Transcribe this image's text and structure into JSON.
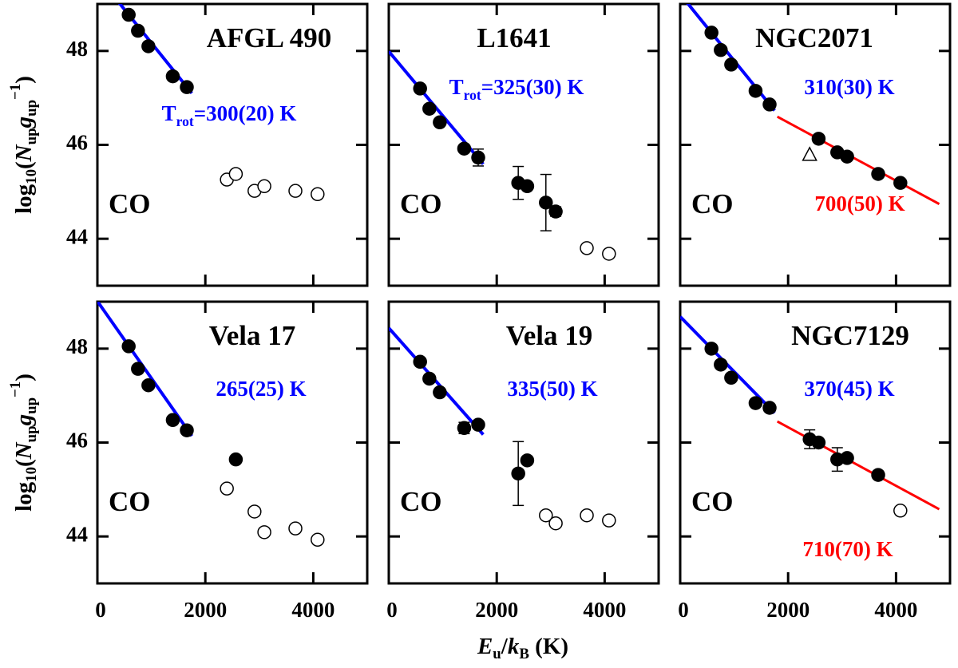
{
  "chart_data": [
    {
      "type": "scatter",
      "title": "AFGL 490",
      "label": "CO",
      "xlim": [
        0,
        5000
      ],
      "ylim": [
        43,
        49
      ],
      "xticks": [
        0,
        2000,
        4000
      ],
      "yticks": [
        44,
        46,
        48
      ],
      "ylabel": [
        "log",
        "10",
        "(",
        "N",
        "up",
        "g",
        "up",
        "−1",
        ")"
      ],
      "filled": {
        "x": [
          580,
          752,
          945,
          1397,
          1657
        ],
        "values": [
          48.77,
          48.43,
          48.1,
          47.46,
          47.23
        ]
      },
      "open": {
        "x": [
          2399,
          2565,
          2911,
          3093,
          3669,
          4080
        ],
        "values": [
          45.26,
          45.38,
          45.02,
          45.12,
          45.02,
          44.95
        ]
      },
      "fits": [
        {
          "x": [
            0,
            1750
          ],
          "values": [
            49.6,
            47.1
          ],
          "color": "#0000ff",
          "label": [
            "T",
            "rot",
            "=300(20) K"
          ]
        }
      ]
    },
    {
      "type": "scatter",
      "title": "L1641",
      "label": "CO",
      "xlim": [
        0,
        5000
      ],
      "ylim": [
        43,
        49
      ],
      "xticks": [
        0,
        2000,
        4000
      ],
      "yticks": [
        44,
        46,
        48
      ],
      "filled": {
        "x": [
          580,
          752,
          945,
          1397,
          1657,
          2399,
          2565,
          2911,
          3093
        ],
        "values": [
          47.2,
          46.77,
          46.48,
          45.92,
          45.73,
          45.19,
          45.12,
          44.77,
          44.58
        ],
        "errors": [
          null,
          null,
          null,
          null,
          0.18,
          0.35,
          null,
          0.6,
          0.1
        ]
      },
      "open": {
        "x": [
          3669,
          4080
        ],
        "values": [
          43.8,
          43.68
        ]
      },
      "fits": [
        {
          "x": [
            0,
            1750
          ],
          "values": [
            47.99,
            45.59
          ],
          "color": "#0000ff",
          "label": [
            "T",
            "rot",
            "=325(30) K"
          ]
        }
      ]
    },
    {
      "type": "scatter",
      "title": "NGC2071",
      "label": "CO",
      "xlim": [
        0,
        5000
      ],
      "ylim": [
        43,
        49
      ],
      "xticks": [
        0,
        2000,
        4000
      ],
      "yticks": [
        44,
        46,
        48
      ],
      "filled": {
        "x": [
          580,
          752,
          945,
          1397,
          1657,
          2565,
          2911,
          3093,
          3669,
          4080
        ],
        "values": [
          48.39,
          48.02,
          47.71,
          47.15,
          46.86,
          46.13,
          45.84,
          45.75,
          45.38,
          45.19
        ]
      },
      "triangle": {
        "x": [
          2399
        ],
        "values": [
          45.79
        ]
      },
      "fits": [
        {
          "x": [
            0,
            1750
          ],
          "values": [
            49.21,
            46.73
          ],
          "color": "#0000ff",
          "label": [
            "310(30) K"
          ]
        },
        {
          "x": [
            1800,
            4800
          ],
          "values": [
            46.6,
            44.74
          ],
          "color": "#ff0000",
          "label": [
            "700(50) K"
          ]
        }
      ]
    },
    {
      "type": "scatter",
      "title": "Vela 17",
      "label": "CO",
      "xlim": [
        0,
        5000
      ],
      "ylim": [
        43,
        49
      ],
      "xticks": [
        0,
        2000,
        4000
      ],
      "yticks": [
        44,
        46,
        48
      ],
      "ylabel": [
        "log",
        "10",
        "(",
        "N",
        "up",
        "g",
        "up",
        "−1",
        ")"
      ],
      "filled": {
        "x": [
          580,
          752,
          945,
          1397,
          1657,
          2565
        ],
        "values": [
          48.05,
          47.57,
          47.22,
          46.48,
          46.26,
          45.64
        ]
      },
      "open": {
        "x": [
          2399,
          2911,
          3093,
          3669,
          4080
        ],
        "values": [
          45.02,
          44.53,
          44.09,
          44.17,
          43.93
        ]
      },
      "fits": [
        {
          "x": [
            0,
            1750
          ],
          "values": [
            49.01,
            46.14
          ],
          "color": "#0000ff",
          "label": [
            "265(25) K"
          ]
        }
      ]
    },
    {
      "type": "scatter",
      "title": "Vela 19",
      "label": "CO",
      "xlim": [
        0,
        5000
      ],
      "ylim": [
        43,
        49
      ],
      "xticks": [
        0,
        2000,
        4000
      ],
      "yticks": [
        44,
        46,
        48
      ],
      "xlabel": [
        "E",
        "u",
        "/",
        "k",
        "B",
        " (K)"
      ],
      "filled": {
        "x": [
          580,
          752,
          945,
          1397,
          1657,
          2399,
          2565
        ],
        "values": [
          47.72,
          47.36,
          47.07,
          46.31,
          46.38,
          45.34,
          45.62
        ],
        "errors": [
          null,
          null,
          null,
          0.12,
          null,
          0.68,
          null
        ]
      },
      "open": {
        "x": [
          2911,
          3093,
          3669,
          4080
        ],
        "values": [
          44.45,
          44.28,
          44.45,
          44.34
        ]
      },
      "fits": [
        {
          "x": [
            0,
            1750
          ],
          "values": [
            48.44,
            46.17
          ],
          "color": "#0000ff",
          "label": [
            "335(50) K"
          ]
        }
      ]
    },
    {
      "type": "scatter",
      "title": "NGC7129",
      "label": "CO",
      "xlim": [
        0,
        5000
      ],
      "ylim": [
        43,
        49
      ],
      "xticks": [
        0,
        2000,
        4000
      ],
      "yticks": [
        44,
        46,
        48
      ],
      "filled": {
        "x": [
          580,
          752,
          945,
          1397,
          1657,
          2399,
          2565,
          2911,
          3093,
          3669
        ],
        "values": [
          48.0,
          47.66,
          47.38,
          46.84,
          46.74,
          46.07,
          46.0,
          45.64,
          45.67,
          45.31
        ],
        "errors": [
          null,
          null,
          null,
          null,
          null,
          0.2,
          null,
          0.25,
          null,
          0.08
        ]
      },
      "open": {
        "x": [
          4080
        ],
        "values": [
          44.55
        ]
      },
      "fits": [
        {
          "x": [
            0,
            1750
          ],
          "values": [
            48.68,
            46.63
          ],
          "color": "#0000ff",
          "label": [
            "370(45) K"
          ]
        },
        {
          "x": [
            1800,
            4800
          ],
          "values": [
            46.45,
            44.58
          ],
          "color": "#ff0000",
          "label": [
            "710(70) K"
          ]
        }
      ]
    }
  ]
}
